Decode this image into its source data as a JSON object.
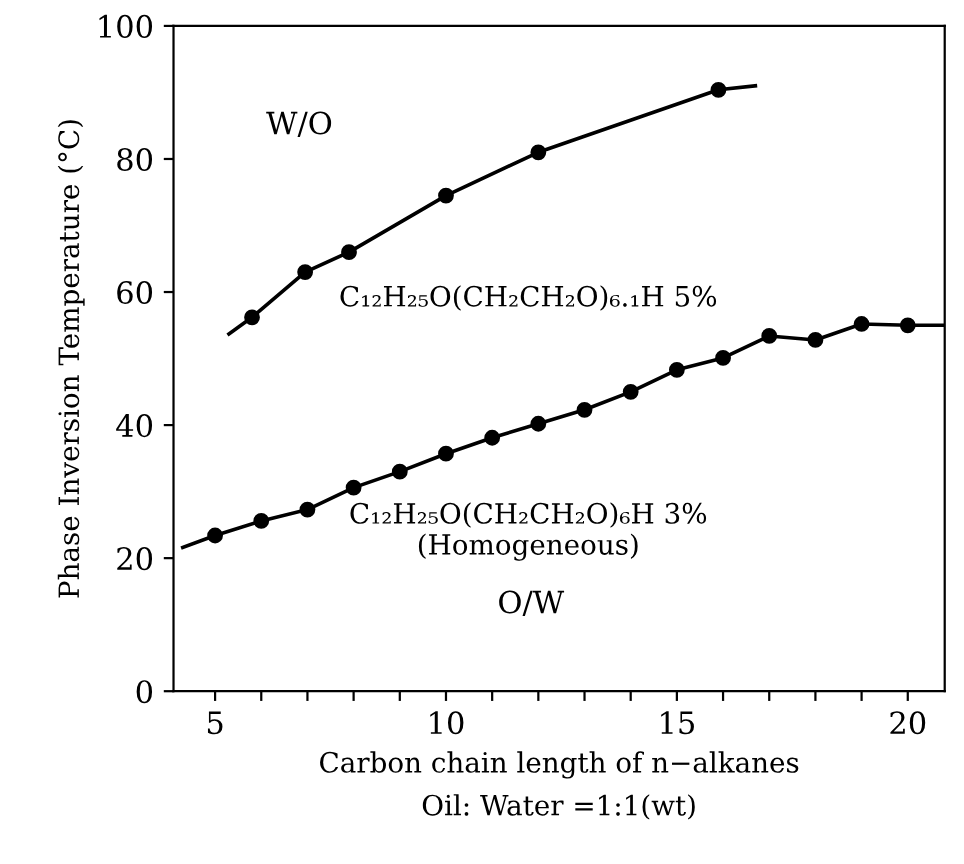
{
  "chart_data": {
    "type": "line",
    "xlabel": "Carbon chain length of n−alkanes",
    "ylabel": "Phase Inversion Temperature (°C)",
    "xlim": [
      4.1,
      20.8
    ],
    "ylim": [
      0,
      100
    ],
    "xticks": [
      5,
      {
        "value": 6,
        "label": null
      },
      {
        "value": 7,
        "label": null
      },
      {
        "value": 8,
        "label": null
      },
      {
        "value": 9,
        "label": null
      },
      10,
      {
        "value": 11,
        "label": null
      },
      {
        "value": 12,
        "label": null
      },
      {
        "value": 13,
        "label": null
      },
      {
        "value": 14,
        "label": null
      },
      15,
      {
        "value": 16,
        "label": null
      },
      {
        "value": 17,
        "label": null
      },
      {
        "value": 18,
        "label": null
      },
      {
        "value": 19,
        "label": null
      },
      20
    ],
    "yticks": [
      0,
      20,
      40,
      60,
      80,
      100
    ],
    "grid": false,
    "legend": false,
    "series": [
      {
        "color": "#000000",
        "marker": "none",
        "x": [
          5.3,
          5.8,
          6.95,
          7.9,
          10.0,
          12.0,
          15.9,
          16.7
        ],
        "values": [
          53.7,
          56.2,
          63,
          66,
          74.5,
          81,
          90.4,
          91
        ]
      },
      {
        "type": "scatter",
        "color": "#000000",
        "marker": "circle",
        "x": [
          5.8,
          6.95,
          7.9,
          10.0,
          12.0,
          15.9
        ],
        "values": [
          56.2,
          63,
          66,
          74.5,
          81,
          90.4
        ]
      },
      {
        "color": "#000000",
        "marker": "none",
        "x": [
          4.3,
          5,
          6,
          7,
          8,
          9,
          10,
          11,
          12,
          13,
          14,
          15,
          16,
          17,
          18,
          19,
          20,
          20.8
        ],
        "values": [
          21.6,
          23.4,
          25.6,
          27.3,
          30.6,
          33,
          35.7,
          38.1,
          40.2,
          42.3,
          45,
          48.3,
          50.1,
          53.4,
          52.8,
          55.2,
          55,
          55
        ]
      },
      {
        "type": "scatter",
        "color": "#000000",
        "marker": "circle",
        "x": [
          5,
          6,
          7,
          8,
          9,
          10,
          11,
          12,
          13,
          14,
          15,
          16,
          17,
          18,
          19,
          20
        ],
        "values": [
          23.4,
          25.6,
          27.3,
          30.6,
          33,
          35.7,
          38.1,
          40.2,
          42.3,
          45,
          48.3,
          50.1,
          53.4,
          52.8,
          55.2,
          55
        ]
      }
    ],
    "annotations": [
      "W/O",
      "C₁₂H₂₅O(CH₂CH₂O)₆.₁H 5%",
      "C₁₂H₂₅O(CH₂CH₂O)₆H 3%\n(Homogeneous)",
      "O/W",
      "Oil: Water =1:1(wt)"
    ]
  }
}
